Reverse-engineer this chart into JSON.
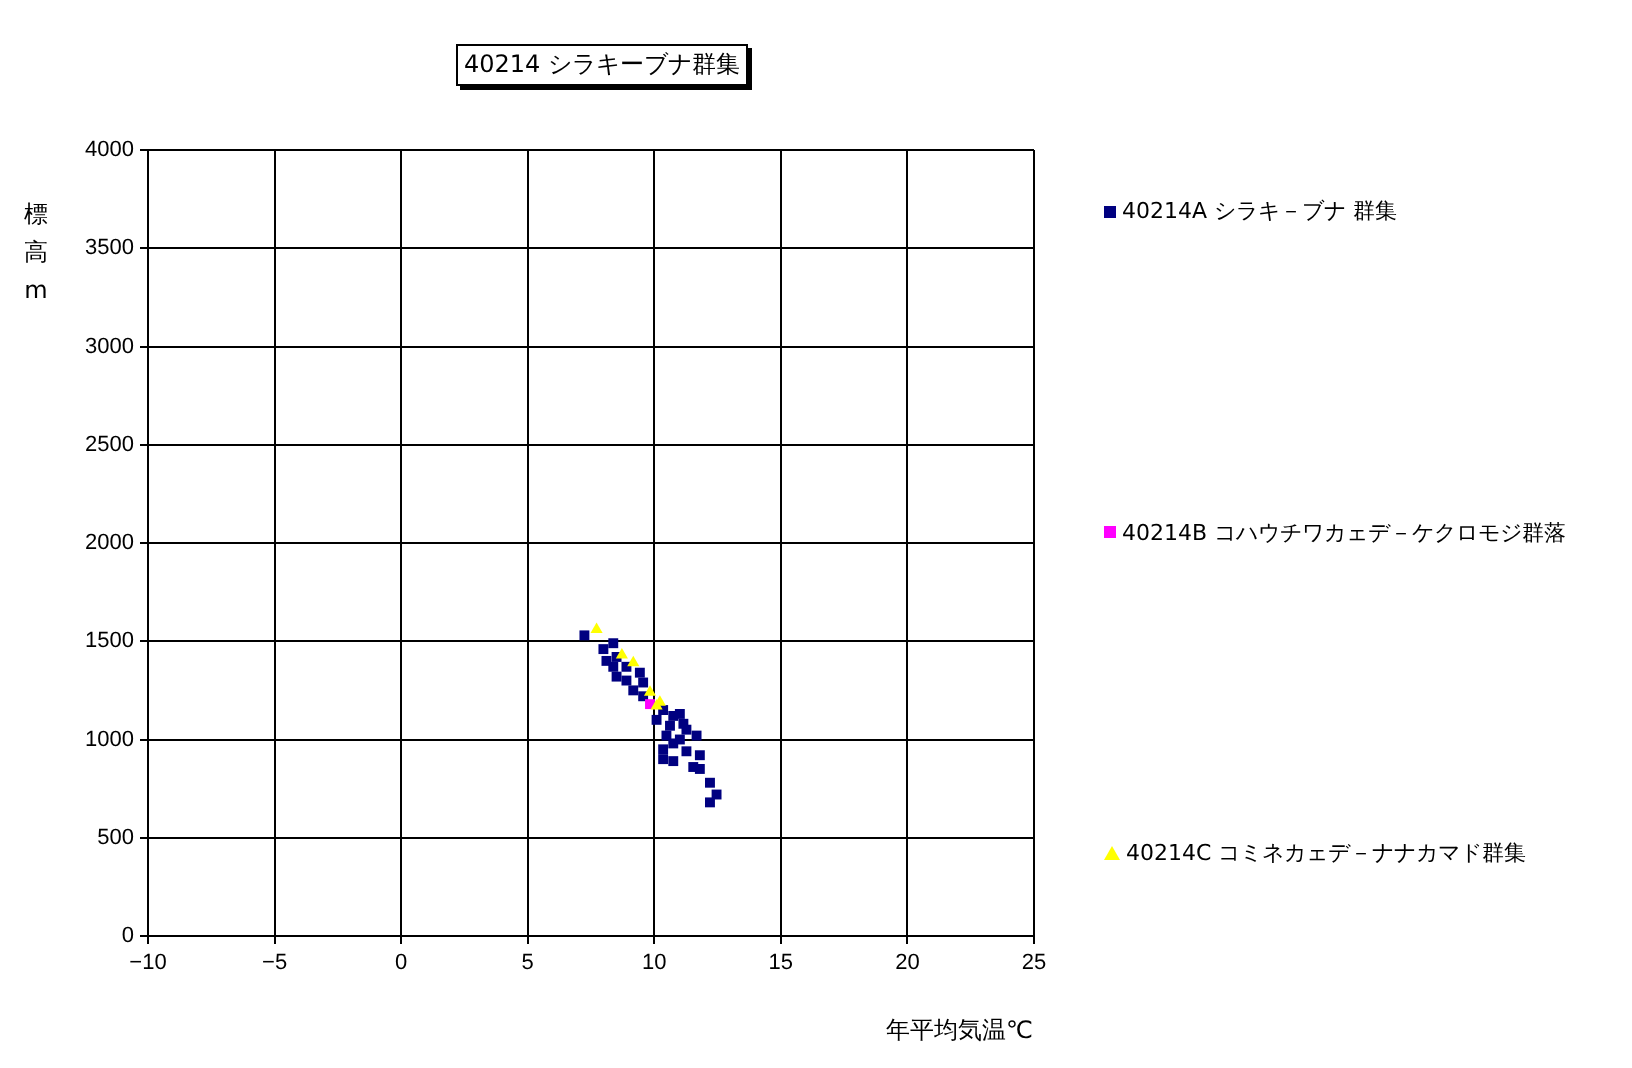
{
  "chart_data": {
    "type": "scatter",
    "title": "40214 シラキーブナ群集",
    "xlabel": "年平均気温℃",
    "ylabel": "標高m",
    "xlim": [
      -10,
      25
    ],
    "xticks": [
      -10,
      -5,
      0,
      5,
      10,
      15,
      20,
      25
    ],
    "ylim": [
      0,
      4000
    ],
    "yticks": [
      0,
      500,
      1000,
      1500,
      2000,
      2500,
      3000,
      3500,
      4000
    ],
    "grid": true,
    "legend": "right",
    "series": [
      {
        "name": "40214A シラキ－ブナ 群集",
        "color": "#000080",
        "marker": "square",
        "x": [
          7.24,
          8.38,
          7.99,
          8.11,
          8.51,
          8.38,
          8.51,
          8.9,
          9.43,
          9.56,
          9.17,
          9.56,
          10.35,
          10.75,
          11.01,
          11.15,
          10.62,
          10.09,
          11.27,
          11.67,
          10.48,
          11.01,
          10.35,
          10.75,
          11.27,
          11.8,
          10.35,
          10.75,
          11.54,
          11.8,
          12.2,
          12.46,
          12.2,
          8.9
        ],
        "values": [
          1530,
          1490,
          1460,
          1400,
          1420,
          1370,
          1320,
          1300,
          1340,
          1290,
          1250,
          1220,
          1150,
          1120,
          1130,
          1080,
          1070,
          1100,
          1050,
          1020,
          1020,
          1000,
          950,
          980,
          940,
          920,
          900,
          890,
          860,
          850,
          780,
          720,
          680,
          1370
        ]
      },
      {
        "name": "40214B コハウチワカェデ－ケクロモジ群落",
        "color": "#ff00ff",
        "marker": "square",
        "x": [
          9.83
        ],
        "values": [
          1180
        ]
      },
      {
        "name": "40214C コミネカェデ－ナナカマド群集",
        "color": "#ffff00",
        "marker": "triangle",
        "x": [
          7.72,
          8.72,
          9.17,
          9.83,
          10.22,
          10.09
        ],
        "values": [
          1560,
          1430,
          1390,
          1240,
          1190,
          1170
        ]
      }
    ]
  }
}
